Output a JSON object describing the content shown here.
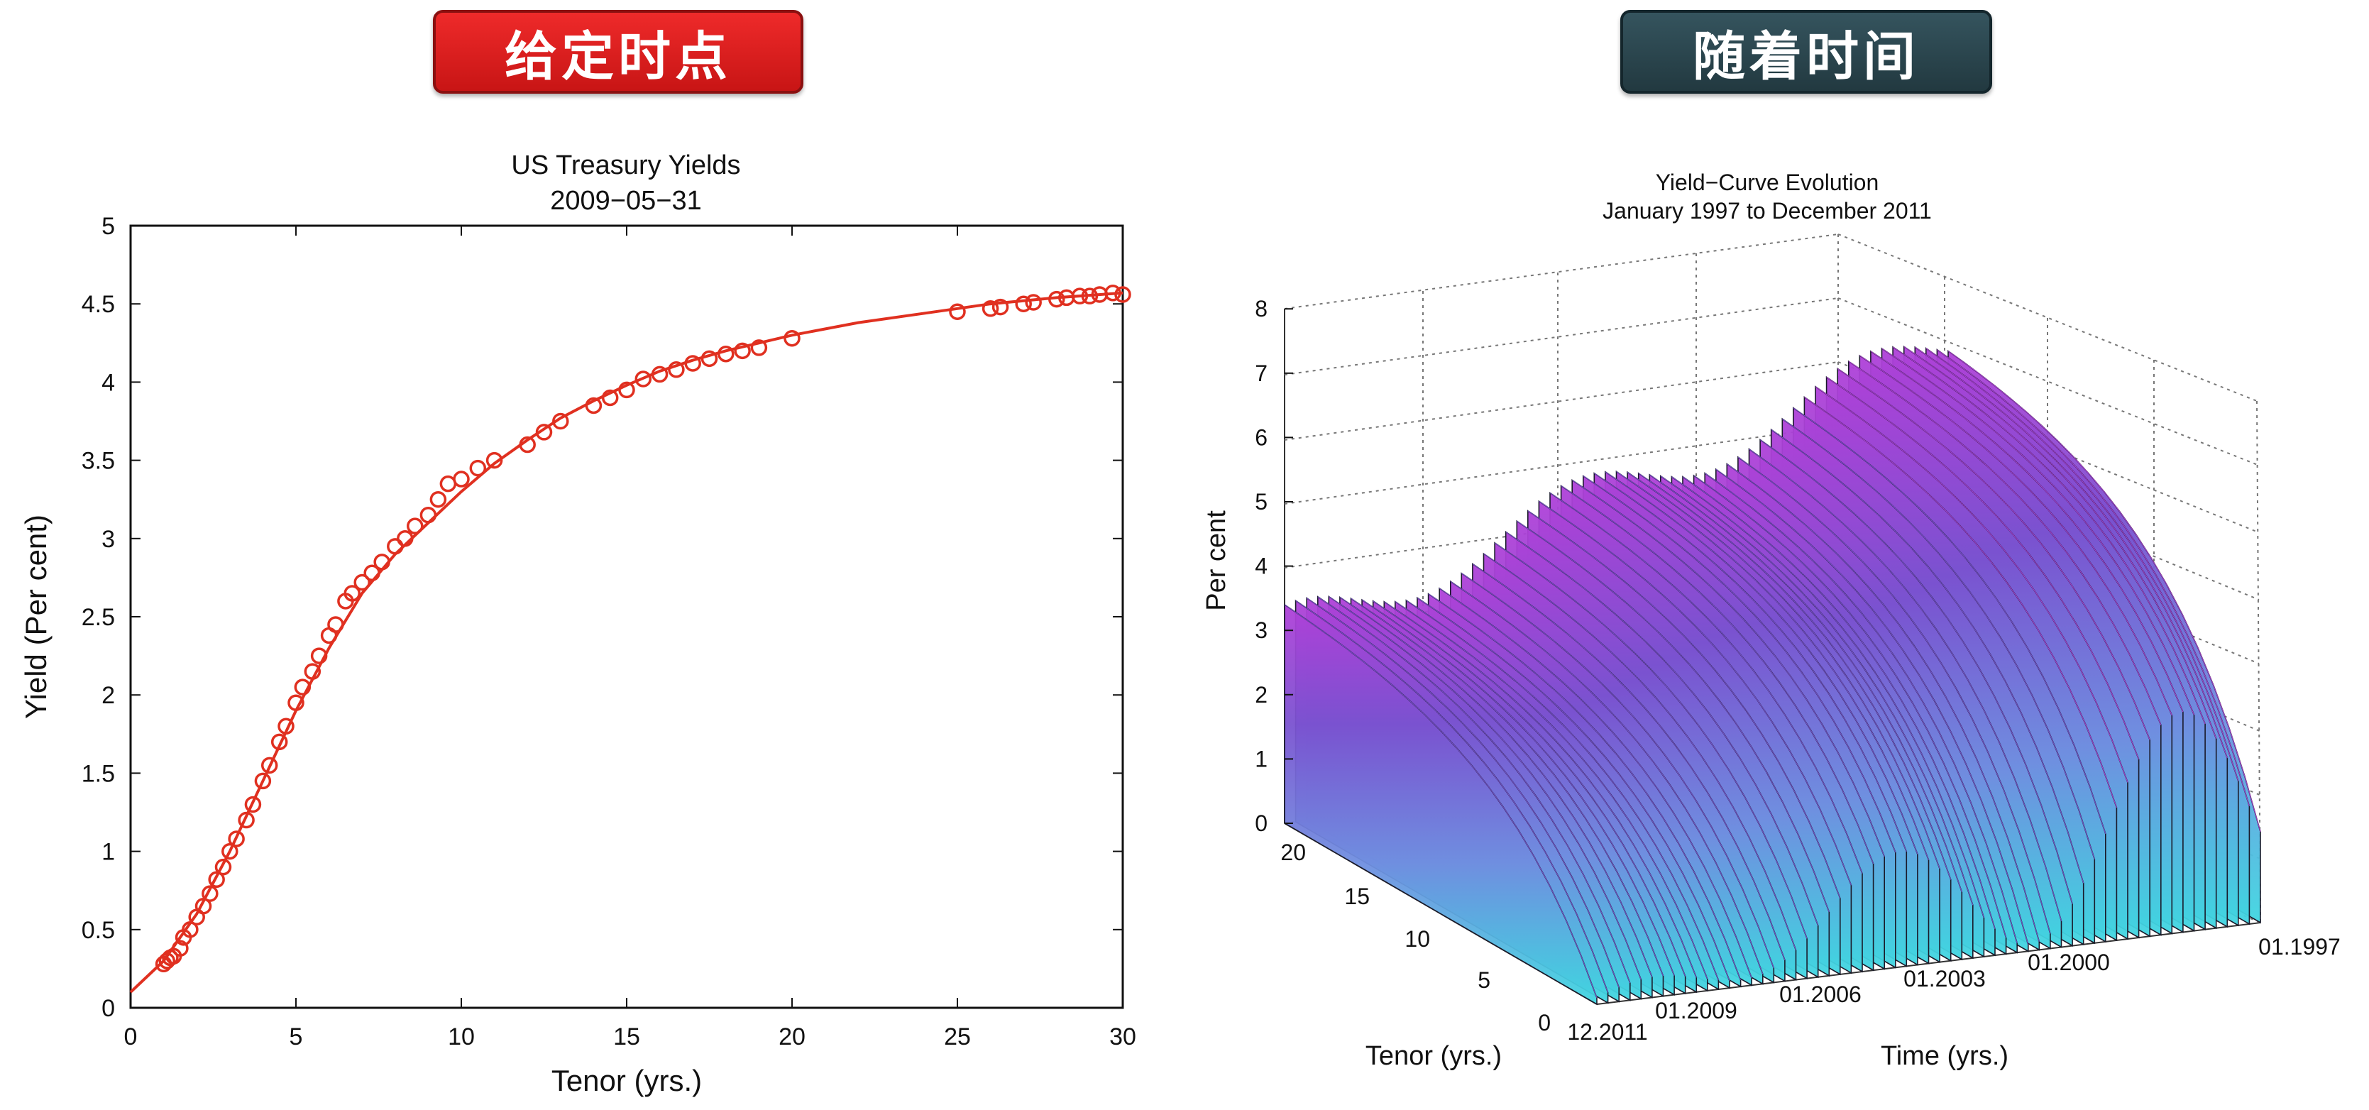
{
  "header": {
    "left_label": "给定时点",
    "right_label": "随着时间"
  },
  "colors": {
    "left_button": "#e02222",
    "right_button": "#2d4a53",
    "curve": "#e03020"
  },
  "chart_data": [
    {
      "type": "scatter",
      "title_line1": "US Treasury Yields",
      "title_line2": "2009−05−31",
      "xlabel": "Tenor (yrs.)",
      "ylabel": "Yield (Per cent)",
      "xlim": [
        0,
        30
      ],
      "ylim": [
        0,
        5
      ],
      "xticks": [
        0,
        5,
        10,
        15,
        20,
        25,
        30
      ],
      "yticks": [
        0,
        0.5,
        1,
        1.5,
        2,
        2.5,
        3,
        3.5,
        4,
        4.5,
        5
      ],
      "ytick_labels": [
        "0",
        "0.5",
        "1",
        "1.5",
        "2",
        "2.5",
        "3",
        "3.5",
        "4",
        "4.5",
        "5"
      ],
      "fitted_curve": {
        "x": [
          0,
          1,
          2,
          3,
          4,
          5,
          6,
          7,
          8,
          9,
          10,
          11,
          12,
          13,
          14,
          15,
          16,
          17,
          18,
          19,
          20,
          22,
          24,
          26,
          28,
          30
        ],
        "y": [
          0.1,
          0.3,
          0.6,
          1.0,
          1.45,
          1.9,
          2.3,
          2.65,
          2.9,
          3.1,
          3.3,
          3.48,
          3.63,
          3.77,
          3.88,
          3.98,
          4.07,
          4.14,
          4.2,
          4.25,
          4.3,
          4.38,
          4.44,
          4.5,
          4.54,
          4.57
        ]
      },
      "points": {
        "x": [
          1.0,
          1.1,
          1.2,
          1.3,
          1.5,
          1.6,
          1.8,
          2.0,
          2.2,
          2.4,
          2.6,
          2.8,
          3.0,
          3.2,
          3.5,
          3.7,
          4.0,
          4.2,
          4.5,
          4.7,
          5.0,
          5.2,
          5.5,
          5.7,
          6.0,
          6.2,
          6.5,
          6.7,
          7.0,
          7.3,
          7.6,
          8.0,
          8.3,
          8.6,
          9.0,
          9.3,
          9.6,
          10.0,
          10.5,
          11.0,
          12.0,
          12.5,
          13.0,
          14.0,
          14.5,
          15.0,
          15.5,
          16.0,
          16.5,
          17.0,
          17.5,
          18.0,
          18.5,
          19.0,
          20.0,
          25.0,
          26.0,
          26.3,
          27.0,
          27.3,
          28.0,
          28.3,
          28.7,
          29.0,
          29.3,
          29.7,
          30.0
        ],
        "y": [
          0.28,
          0.3,
          0.32,
          0.33,
          0.38,
          0.45,
          0.5,
          0.58,
          0.65,
          0.73,
          0.82,
          0.9,
          1.0,
          1.08,
          1.2,
          1.3,
          1.45,
          1.55,
          1.7,
          1.8,
          1.95,
          2.05,
          2.15,
          2.25,
          2.38,
          2.45,
          2.6,
          2.65,
          2.72,
          2.78,
          2.85,
          2.95,
          3.0,
          3.08,
          3.15,
          3.25,
          3.35,
          3.38,
          3.45,
          3.5,
          3.6,
          3.68,
          3.75,
          3.85,
          3.9,
          3.95,
          4.02,
          4.05,
          4.08,
          4.12,
          4.15,
          4.18,
          4.2,
          4.22,
          4.28,
          4.45,
          4.47,
          4.48,
          4.5,
          4.51,
          4.53,
          4.54,
          4.55,
          4.55,
          4.56,
          4.57,
          4.56
        ]
      }
    },
    {
      "type": "surface",
      "title_line1": "Yield−Curve Evolution",
      "title_line2": "January 1997 to December 2011",
      "zlabel": "Per cent",
      "xlabel": "Tenor (yrs.)",
      "ylabel": "Time (yrs.)",
      "zlim": [
        0,
        8
      ],
      "zticks": [
        "0",
        "1",
        "2",
        "3",
        "4",
        "5",
        "6",
        "7",
        "8"
      ],
      "tenor_ticks": [
        "0",
        "5",
        "10",
        "15",
        "20"
      ],
      "time_ticks": [
        "12.2011",
        "01.2009",
        "01.2006",
        "01.2003",
        "01.2000",
        "01.1997"
      ],
      "colormap": [
        "#3fd6e0",
        "#6f8fe0",
        "#7a52d0",
        "#b040d8"
      ]
    }
  ]
}
